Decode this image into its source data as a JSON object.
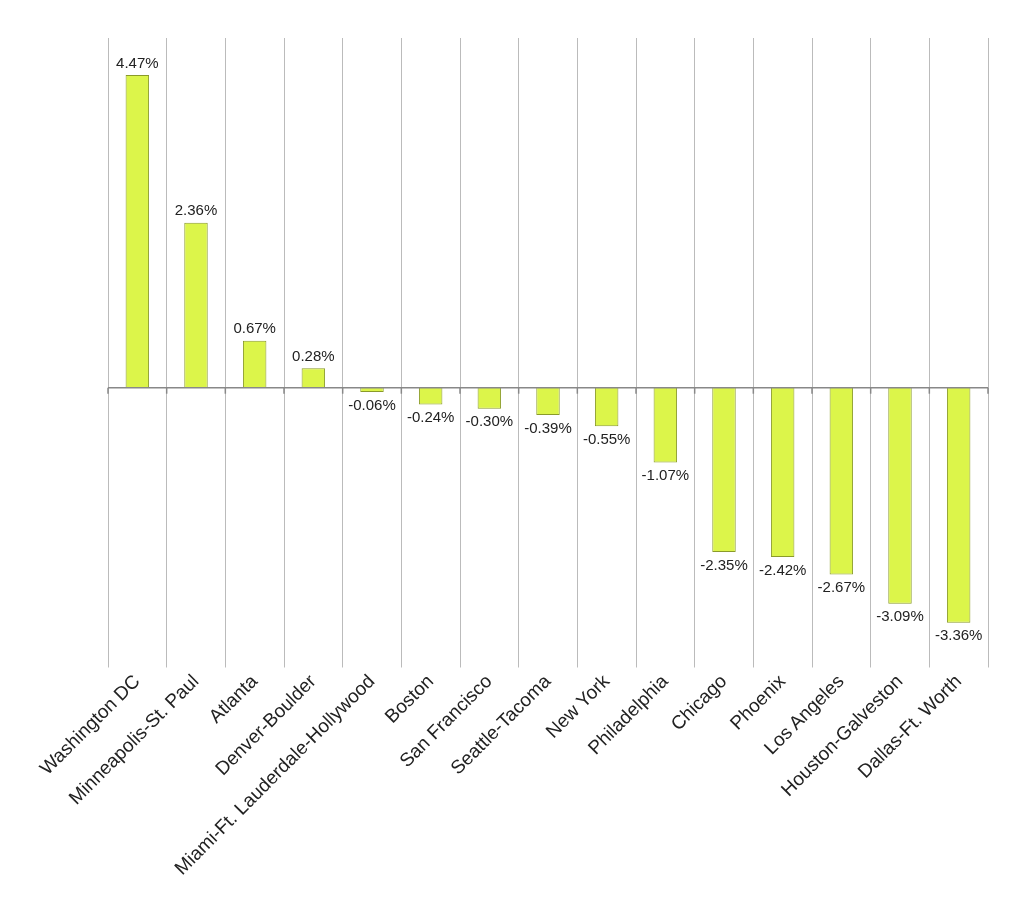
{
  "chart_data": {
    "type": "bar",
    "categories": [
      "Washington DC",
      "Minneapolis-St. Paul",
      "Atlanta",
      "Denver-Boulder",
      "Miami-Ft. Lauderdale-Hollywood",
      "Boston",
      "San Francisco",
      "Seattle-Tacoma",
      "New York",
      "Philadelphia",
      "Chicago",
      "Phoenix",
      "Los Angeles",
      "Houston-Galveston",
      "Dallas-Ft. Worth"
    ],
    "values": [
      4.47,
      2.36,
      0.67,
      0.28,
      -0.06,
      -0.24,
      -0.3,
      -0.39,
      -0.55,
      -1.07,
      -2.35,
      -2.42,
      -2.67,
      -3.09,
      -3.36
    ],
    "value_labels": [
      "4.47%",
      "2.36%",
      "0.67%",
      "0.28%",
      "-0.06%",
      "-0.24%",
      "-0.30%",
      "-0.39%",
      "-0.55%",
      "-1.07%",
      "-2.35%",
      "-2.42%",
      "-2.67%",
      "-3.09%",
      "-3.36%"
    ],
    "color": "#dcf54a",
    "grid": "x",
    "tick_labels": "x",
    "legend": false
  }
}
